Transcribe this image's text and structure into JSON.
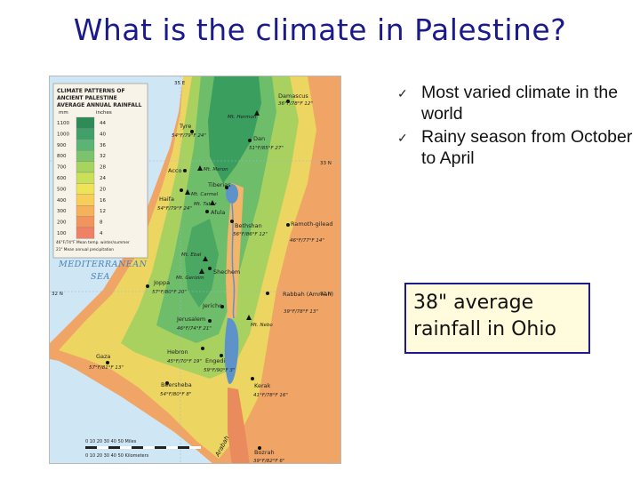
{
  "slide": {
    "title": "What is the climate in Palestine?"
  },
  "bullets": [
    {
      "text": "Most varied climate in the world"
    },
    {
      "text": "Rainy season from October to April"
    }
  ],
  "callout": {
    "text": "38\" average rainfall in Ohio"
  },
  "map": {
    "legend": {
      "title_line1": "CLIMATE PATTERNS OF",
      "title_line2": "ANCIENT PALESTINE",
      "title_line3": "AVERAGE ANNUAL RAINFALL",
      "col_mm": "mm",
      "col_inches": "inches",
      "rows": [
        {
          "mm": "1100",
          "in": "44",
          "color": "#2e8b57"
        },
        {
          "mm": "1000",
          "in": "40",
          "color": "#3fa06a"
        },
        {
          "mm": "900",
          "in": "36",
          "color": "#5bb374"
        },
        {
          "mm": "800",
          "in": "32",
          "color": "#7cc36e"
        },
        {
          "mm": "700",
          "in": "28",
          "color": "#a6d45e"
        },
        {
          "mm": "600",
          "in": "24",
          "color": "#cbe05a"
        },
        {
          "mm": "500",
          "in": "20",
          "color": "#eee45a"
        },
        {
          "mm": "400",
          "in": "16",
          "color": "#f7cf58"
        },
        {
          "mm": "300",
          "in": "12",
          "color": "#f6b25a"
        },
        {
          "mm": "200",
          "in": "8",
          "color": "#f2945e"
        },
        {
          "mm": "100",
          "in": "4",
          "color": "#ef8266"
        }
      ],
      "note1": "46°F/74°F  Mean temp. winter/summer",
      "note2": "21\"  Mean annual precipitation"
    },
    "sea_line1": "MEDITERRANEAN",
    "sea_line2": "SEA",
    "arabah": "Arabah",
    "scale_miles": "0  10  20  30  40  50 Miles",
    "scale_km": "0  10  20  30  40  50 Kilometers",
    "places": [
      {
        "name": "Damascus",
        "stats": "36°F/78°F 12\""
      },
      {
        "name": "Tyre",
        "stats": "54°F/79°F 24\""
      },
      {
        "name": "Dan",
        "stats": "51°F/85°F 27\""
      },
      {
        "name": "Acco",
        "stats": ""
      },
      {
        "name": "Tiberias",
        "stats": ""
      },
      {
        "name": "Haifa",
        "stats": "54°F/79°F 24\""
      },
      {
        "name": "Afula",
        "stats": ""
      },
      {
        "name": "Bethshan",
        "stats": "56°F/86°F 12\""
      },
      {
        "name": "Ramoth-gilead",
        "stats": "46°F/77°F 14\""
      },
      {
        "name": "Shechem",
        "stats": ""
      },
      {
        "name": "Joppa",
        "stats": "57°F/80°F 20\""
      },
      {
        "name": "Jericho",
        "stats": ""
      },
      {
        "name": "Rabbah (Amman)",
        "stats": "39°F/78°F 13\""
      },
      {
        "name": "Jerusalem",
        "stats": "46°F/74°F 21\""
      },
      {
        "name": "Hebron",
        "stats": "45°F/70°F 19\""
      },
      {
        "name": "Engedi",
        "stats": "59°F/90°F 3\""
      },
      {
        "name": "Gaza",
        "stats": "57°F/81°F 13\""
      },
      {
        "name": "Beersheba",
        "stats": "54°F/80°F 8\""
      },
      {
        "name": "Kerak",
        "stats": "41°F/78°F 16\""
      },
      {
        "name": "Bozrah",
        "stats": "39°F/82°F 6\""
      }
    ],
    "mountains": [
      "Mt. Hermon",
      "Mt. Meron",
      "Mt. Carmel",
      "Mt. Tabor",
      "Mt. Ebal",
      "Mt. Gerizim",
      "Mt. Nebo"
    ],
    "lat_labels": [
      "33 N",
      "32 N",
      "31 N",
      "35 E"
    ]
  }
}
